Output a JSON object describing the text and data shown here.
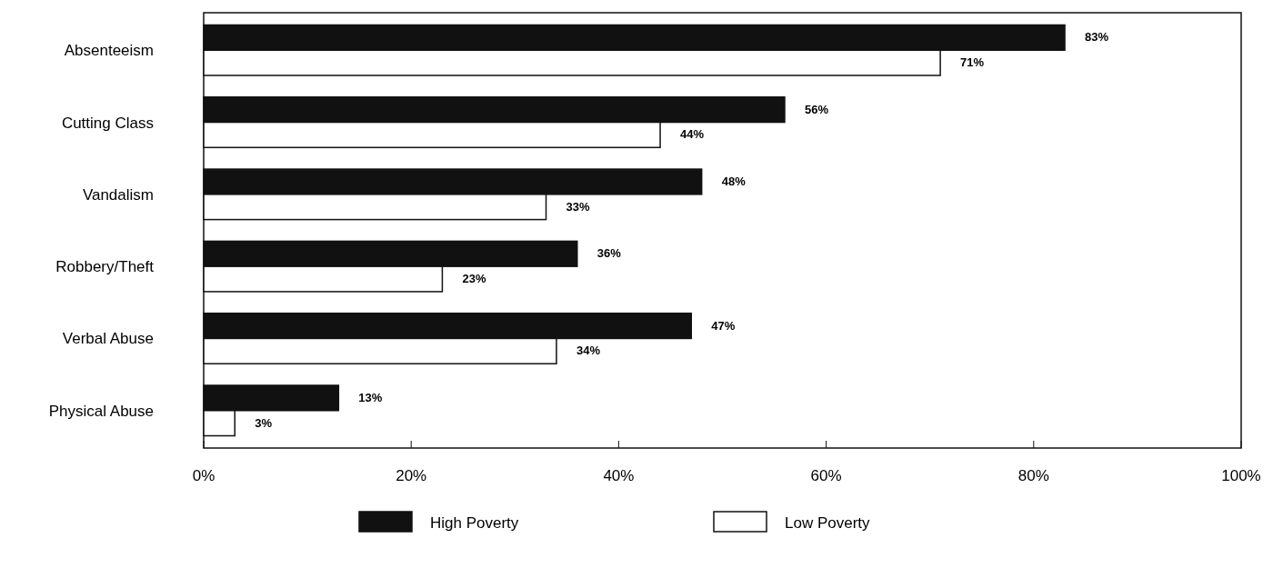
{
  "chart_data": {
    "type": "bar",
    "orientation": "horizontal",
    "categories": [
      "Absenteeism",
      "Cutting Class",
      "Vandalism",
      "Robbery/Theft",
      "Verbal Abuse",
      "Physical Abuse"
    ],
    "series": [
      {
        "name": "High Poverty",
        "color": "#111111",
        "values": [
          83,
          56,
          48,
          36,
          47,
          13
        ],
        "value_labels": [
          "83%",
          "56%",
          "48%",
          "36%",
          "47%",
          "13%"
        ]
      },
      {
        "name": "Low Poverty",
        "color": "#ffffff",
        "values": [
          71,
          44,
          33,
          23,
          34,
          3
        ],
        "value_labels": [
          "71%",
          "44%",
          "33%",
          "23%",
          "34%",
          "3%"
        ]
      }
    ],
    "xlim": [
      0,
      100
    ],
    "xticks": [
      {
        "value": 0,
        "label": "0%"
      },
      {
        "value": 20,
        "label": "20%"
      },
      {
        "value": 40,
        "label": "40%"
      },
      {
        "value": 60,
        "label": "60%"
      },
      {
        "value": 80,
        "label": "80%"
      },
      {
        "value": 100,
        "label": "100%"
      }
    ],
    "legend": "bottom",
    "grid": false
  }
}
